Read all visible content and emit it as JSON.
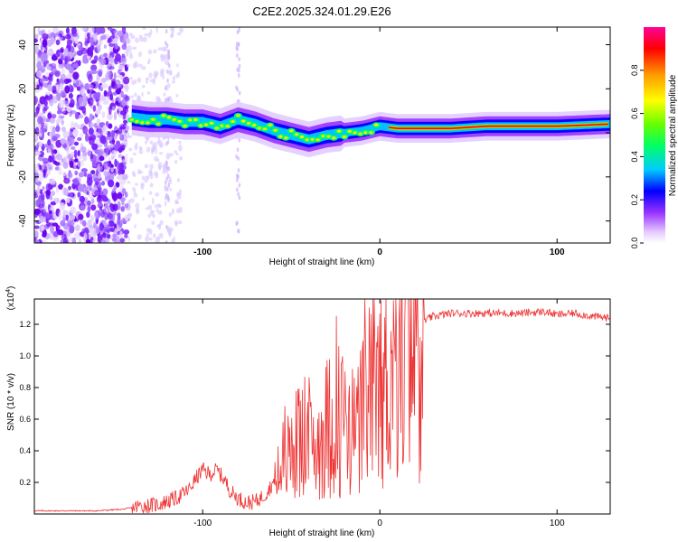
{
  "title": "C2E2.2025.324.01.29.E26",
  "chart_data": [
    {
      "type": "heatmap",
      "name": "spectrogram",
      "xlabel": "Height of straight line (km)",
      "ylabel": "Frequency (Hz)",
      "xlim": [
        -195,
        130
      ],
      "ylim": [
        -50,
        48
      ],
      "xticks": [
        -100,
        0,
        100
      ],
      "xtick_labels": [
        "-100",
        "0",
        "100"
      ],
      "yticks": [
        -40,
        -20,
        0,
        20,
        40
      ],
      "ytick_labels": [
        "-40",
        "-20",
        "0",
        "20",
        "40"
      ],
      "ridge": {
        "x": [
          -140,
          -130,
          -120,
          -110,
          -100,
          -90,
          -80,
          -70,
          -60,
          -50,
          -40,
          -30,
          -20,
          -10,
          0,
          10,
          20,
          40,
          60,
          80,
          100,
          130
        ],
        "freq": [
          7,
          6,
          6,
          5,
          5,
          3,
          6,
          4,
          1,
          -1,
          -3,
          -1,
          0,
          1,
          3,
          2,
          2,
          2,
          3,
          3,
          3,
          4
        ]
      },
      "colorbar": {
        "label": "Normalized spectral amplitude",
        "range": [
          0,
          1
        ],
        "ticks": [
          0.0,
          0.2,
          0.4,
          0.6,
          0.8
        ],
        "tick_labels": [
          "0.0",
          "0.2",
          "0.4",
          "0.6",
          "0.8"
        ],
        "colors": [
          "#ffffff",
          "#e6ccff",
          "#9933ff",
          "#0000ff",
          "#00ccff",
          "#00ff66",
          "#66ff00",
          "#ffff00",
          "#ff9900",
          "#ff0000",
          "#ff0099"
        ]
      },
      "grid": false
    },
    {
      "type": "line",
      "name": "snr",
      "xlabel": "Height of straight line (km)",
      "ylabel": "SNR (10 * v/v)",
      "multiplier": "(x10",
      "multiplier_exp": "4",
      "multiplier_close": ")",
      "xlim": [
        -195,
        130
      ],
      "ylim": [
        0,
        1.36
      ],
      "xticks": [
        -100,
        0,
        100
      ],
      "xtick_labels": [
        "-100",
        "0",
        "100"
      ],
      "yticks": [
        0.2,
        0.4,
        0.6,
        0.8,
        1.0,
        1.2
      ],
      "ytick_labels": [
        "0.2",
        "0.4",
        "0.6",
        "0.8",
        "1.0",
        "1.2"
      ],
      "color": "#ee3333",
      "series": [
        {
          "name": "SNR",
          "x": [
            -195,
            -160,
            -145,
            -135,
            -125,
            -115,
            -108,
            -104,
            -100,
            -96,
            -92,
            -88,
            -84,
            -80,
            -75,
            -70,
            -65,
            -60,
            -55,
            -50,
            -45,
            -40,
            -35,
            -30,
            -25,
            -20,
            -16,
            -12,
            -8,
            -4,
            0,
            5,
            10,
            15,
            20,
            25,
            30,
            40,
            60,
            80,
            93,
            100,
            110,
            120,
            130
          ],
          "values": [
            0.02,
            0.02,
            0.03,
            0.05,
            0.06,
            0.1,
            0.15,
            0.22,
            0.28,
            0.25,
            0.28,
            0.22,
            0.14,
            0.1,
            0.07,
            0.08,
            0.12,
            0.2,
            0.28,
            0.4,
            0.45,
            0.4,
            0.45,
            0.55,
            0.6,
            0.6,
            0.5,
            0.55,
            0.65,
            0.72,
            0.78,
            0.85,
            0.98,
            1.05,
            1.15,
            1.22,
            1.25,
            1.27,
            1.27,
            1.27,
            1.28,
            1.26,
            1.27,
            1.25,
            1.24
          ]
        }
      ],
      "grid": false
    }
  ]
}
